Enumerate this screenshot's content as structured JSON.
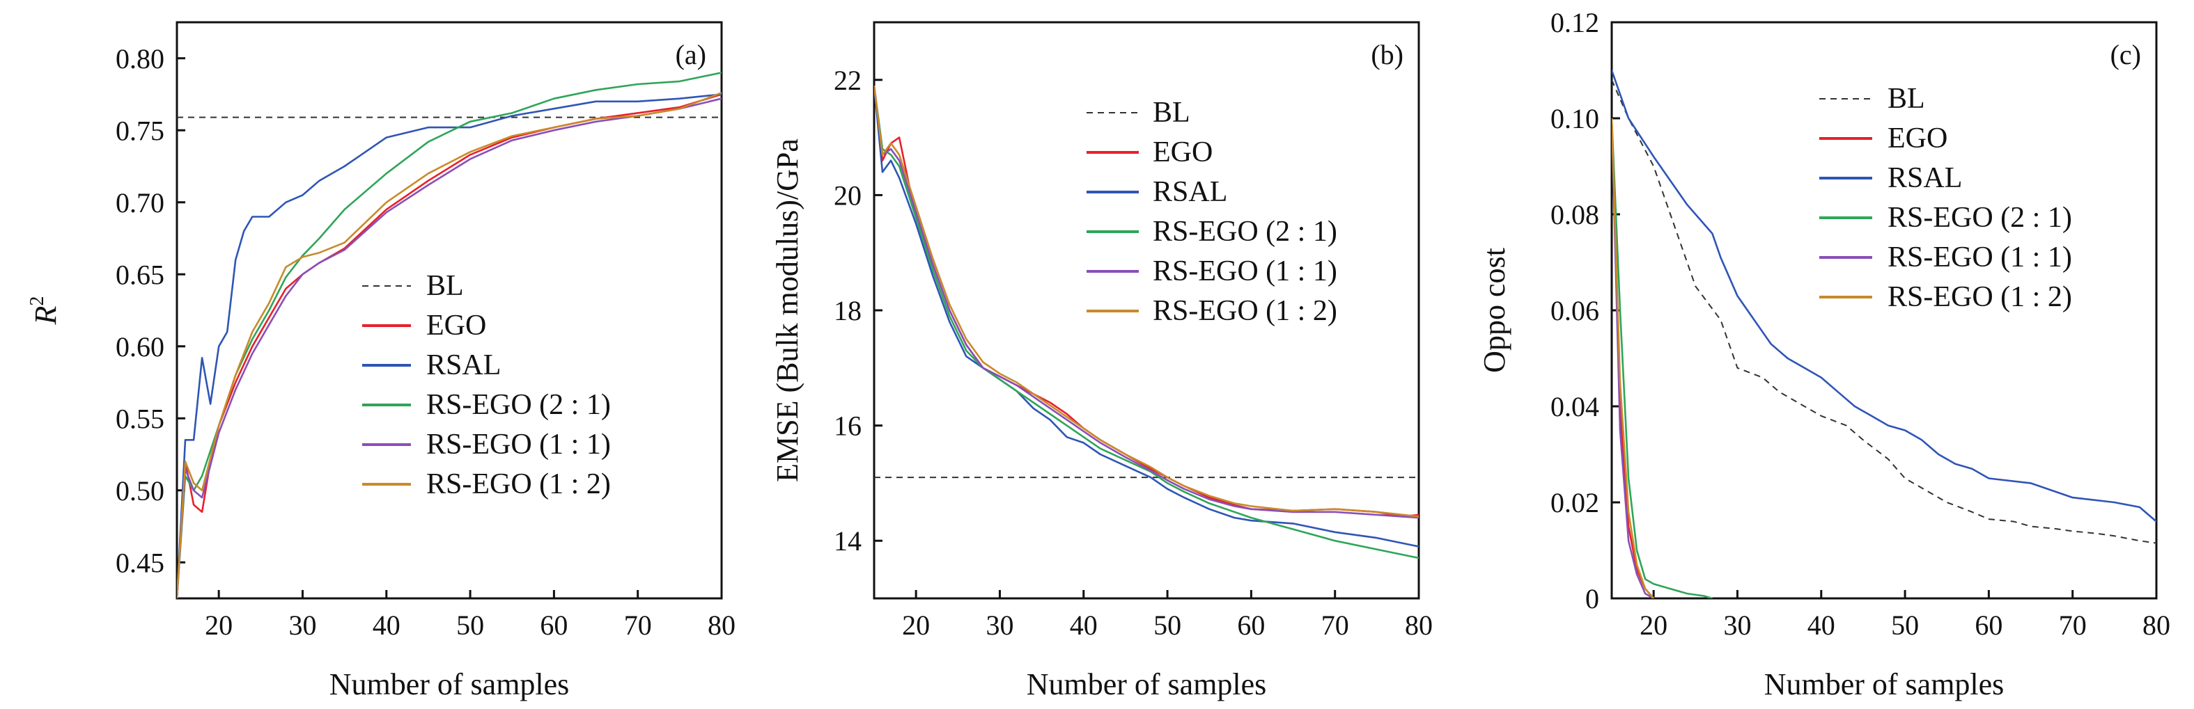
{
  "chart_data": [
    {
      "type": "line",
      "panel_label": "(a)",
      "xlabel": "Number of samples",
      "ylabel": "R",
      "ylabel_sup": "2",
      "xlim": [
        15,
        80
      ],
      "ylim": [
        0.425,
        0.825
      ],
      "xticks": [
        20,
        30,
        40,
        50,
        60,
        70,
        80
      ],
      "xtick_labels": [
        "20",
        "30",
        "40",
        "50",
        "60",
        "70",
        "80"
      ],
      "yticks": [
        0.45,
        0.5,
        0.55,
        0.6,
        0.65,
        0.7,
        0.75,
        0.8
      ],
      "ytick_labels": [
        "0.45",
        "0.50",
        "0.55",
        "0.60",
        "0.65",
        "0.70",
        "0.75",
        "0.80"
      ],
      "legend": {
        "position": "center-right"
      },
      "series": [
        {
          "name": "BL",
          "color": "#333333",
          "dashed": true,
          "x": [
            15,
            80
          ],
          "y": [
            0.759,
            0.759
          ]
        },
        {
          "name": "EGO",
          "color": "#e8202a",
          "dashed": false,
          "x": [
            15,
            16,
            17,
            18,
            19,
            20,
            22,
            24,
            26,
            28,
            30,
            32,
            35,
            40,
            45,
            50,
            55,
            60,
            65,
            70,
            75,
            80
          ],
          "y": [
            0.425,
            0.52,
            0.49,
            0.485,
            0.52,
            0.545,
            0.575,
            0.6,
            0.62,
            0.64,
            0.65,
            0.658,
            0.668,
            0.695,
            0.715,
            0.733,
            0.745,
            0.752,
            0.758,
            0.762,
            0.766,
            0.775
          ]
        },
        {
          "name": "RSAL",
          "color": "#2f55b5",
          "dashed": false,
          "x": [
            15,
            16,
            17,
            18,
            19,
            20,
            21,
            22,
            23,
            24,
            26,
            28,
            30,
            32,
            35,
            40,
            45,
            50,
            55,
            60,
            65,
            70,
            75,
            80
          ],
          "y": [
            0.425,
            0.535,
            0.535,
            0.592,
            0.56,
            0.6,
            0.61,
            0.66,
            0.68,
            0.69,
            0.69,
            0.7,
            0.705,
            0.715,
            0.725,
            0.745,
            0.752,
            0.752,
            0.76,
            0.765,
            0.77,
            0.77,
            0.772,
            0.775
          ]
        },
        {
          "name": "RS-EGO (2 : 1)",
          "color": "#2fa558",
          "dashed": false,
          "x": [
            15,
            16,
            17,
            18,
            20,
            22,
            24,
            26,
            28,
            30,
            32,
            35,
            40,
            45,
            50,
            55,
            60,
            65,
            70,
            75,
            80
          ],
          "y": [
            0.425,
            0.51,
            0.5,
            0.51,
            0.545,
            0.58,
            0.605,
            0.625,
            0.648,
            0.663,
            0.675,
            0.695,
            0.72,
            0.742,
            0.756,
            0.762,
            0.772,
            0.778,
            0.782,
            0.784,
            0.79
          ]
        },
        {
          "name": "RS-EGO (1 : 1)",
          "color": "#8a4fb8",
          "dashed": false,
          "x": [
            15,
            16,
            17,
            18,
            20,
            22,
            24,
            26,
            28,
            30,
            32,
            35,
            40,
            45,
            50,
            55,
            60,
            65,
            70,
            75,
            80
          ],
          "y": [
            0.425,
            0.515,
            0.5,
            0.495,
            0.54,
            0.57,
            0.595,
            0.615,
            0.635,
            0.65,
            0.658,
            0.667,
            0.693,
            0.712,
            0.73,
            0.743,
            0.75,
            0.756,
            0.76,
            0.765,
            0.772
          ]
        },
        {
          "name": "RS-EGO (1 : 2)",
          "color": "#c98a2a",
          "dashed": false,
          "x": [
            15,
            16,
            17,
            18,
            20,
            22,
            24,
            26,
            28,
            30,
            32,
            35,
            40,
            45,
            50,
            55,
            60,
            65,
            70,
            75,
            80
          ],
          "y": [
            0.425,
            0.52,
            0.505,
            0.5,
            0.545,
            0.58,
            0.61,
            0.63,
            0.655,
            0.662,
            0.665,
            0.672,
            0.7,
            0.72,
            0.735,
            0.746,
            0.752,
            0.758,
            0.76,
            0.765,
            0.776
          ]
        }
      ]
    },
    {
      "type": "line",
      "panel_label": "(b)",
      "xlabel": "Number of samples",
      "ylabel": "EMSE (Bulk modulus)/GPa",
      "xlim": [
        15,
        80
      ],
      "ylim": [
        13,
        23
      ],
      "xticks": [
        20,
        30,
        40,
        50,
        60,
        70,
        80
      ],
      "xtick_labels": [
        "20",
        "30",
        "40",
        "50",
        "60",
        "70",
        "80"
      ],
      "yticks": [
        14,
        16,
        18,
        20,
        22
      ],
      "ytick_labels": [
        "14",
        "16",
        "18",
        "20",
        "22"
      ],
      "legend": {
        "position": "top-right"
      },
      "series": [
        {
          "name": "BL",
          "color": "#333333",
          "dashed": true,
          "x": [
            15,
            80
          ],
          "y": [
            15.1,
            15.1
          ]
        },
        {
          "name": "EGO",
          "color": "#e8202a",
          "dashed": false,
          "x": [
            15,
            16,
            17,
            18,
            19,
            20,
            22,
            24,
            26,
            28,
            30,
            32,
            34,
            36,
            38,
            40,
            42,
            45,
            48,
            50,
            52,
            55,
            58,
            60,
            65,
            70,
            75,
            78,
            80
          ],
          "y": [
            21.9,
            20.6,
            20.9,
            21.0,
            20.3,
            19.6,
            18.8,
            18.0,
            17.4,
            17.0,
            16.85,
            16.7,
            16.55,
            16.4,
            16.2,
            15.95,
            15.75,
            15.5,
            15.25,
            15.1,
            14.95,
            14.75,
            14.62,
            14.55,
            14.52,
            14.55,
            14.5,
            14.42,
            14.45
          ]
        },
        {
          "name": "RSAL",
          "color": "#2f55b5",
          "dashed": false,
          "x": [
            15,
            16,
            17,
            18,
            20,
            22,
            24,
            26,
            28,
            30,
            32,
            34,
            36,
            38,
            40,
            42,
            45,
            48,
            50,
            52,
            55,
            58,
            60,
            65,
            70,
            75,
            80
          ],
          "y": [
            21.9,
            20.4,
            20.6,
            20.3,
            19.5,
            18.6,
            17.8,
            17.2,
            17.0,
            16.8,
            16.6,
            16.3,
            16.1,
            15.8,
            15.7,
            15.5,
            15.3,
            15.1,
            14.9,
            14.75,
            14.55,
            14.4,
            14.35,
            14.3,
            14.15,
            14.05,
            13.9
          ]
        },
        {
          "name": "RS-EGO (2 : 1)",
          "color": "#2fa558",
          "dashed": false,
          "x": [
            15,
            16,
            17,
            18,
            20,
            22,
            24,
            26,
            28,
            30,
            32,
            34,
            36,
            38,
            40,
            42,
            45,
            48,
            50,
            52,
            55,
            58,
            60,
            65,
            70,
            75,
            80
          ],
          "y": [
            21.9,
            20.8,
            20.7,
            20.5,
            19.6,
            18.7,
            17.9,
            17.3,
            17.0,
            16.8,
            16.6,
            16.4,
            16.2,
            16.0,
            15.8,
            15.6,
            15.4,
            15.2,
            15.0,
            14.85,
            14.65,
            14.5,
            14.4,
            14.2,
            14.0,
            13.85,
            13.7
          ]
        },
        {
          "name": "RS-EGO (1 : 1)",
          "color": "#8a4fb8",
          "dashed": false,
          "x": [
            15,
            16,
            17,
            18,
            20,
            22,
            24,
            26,
            28,
            30,
            32,
            34,
            36,
            38,
            40,
            42,
            45,
            48,
            50,
            52,
            55,
            58,
            60,
            65,
            70,
            75,
            80
          ],
          "y": [
            21.9,
            20.7,
            20.8,
            20.6,
            19.7,
            18.8,
            18.0,
            17.4,
            17.0,
            16.85,
            16.7,
            16.5,
            16.3,
            16.1,
            15.9,
            15.7,
            15.45,
            15.22,
            15.05,
            14.9,
            14.72,
            14.6,
            14.55,
            14.5,
            14.5,
            14.45,
            14.4
          ]
        },
        {
          "name": "RS-EGO (1 : 2)",
          "color": "#c98a2a",
          "dashed": false,
          "x": [
            15,
            16,
            17,
            18,
            20,
            22,
            24,
            26,
            28,
            30,
            32,
            34,
            36,
            38,
            40,
            42,
            45,
            48,
            50,
            52,
            55,
            58,
            60,
            65,
            70,
            75,
            80
          ],
          "y": [
            21.9,
            20.7,
            20.9,
            20.7,
            19.8,
            18.9,
            18.1,
            17.5,
            17.1,
            16.9,
            16.75,
            16.55,
            16.35,
            16.15,
            15.95,
            15.75,
            15.5,
            15.28,
            15.1,
            14.95,
            14.78,
            14.65,
            14.6,
            14.52,
            14.55,
            14.5,
            14.42
          ]
        }
      ]
    },
    {
      "type": "line",
      "panel_label": "(c)",
      "xlabel": "Number of samples",
      "ylabel": "Oppo cost",
      "xlim": [
        15,
        80
      ],
      "ylim": [
        0,
        0.12
      ],
      "xticks": [
        20,
        30,
        40,
        50,
        60,
        70,
        80
      ],
      "xtick_labels": [
        "20",
        "30",
        "40",
        "50",
        "60",
        "70",
        "80"
      ],
      "yticks": [
        0,
        0.02,
        0.04,
        0.06,
        0.08,
        0.1,
        0.12
      ],
      "ytick_labels": [
        "0",
        "0.02",
        "0.04",
        "0.06",
        "0.08",
        "0.10",
        "0.12"
      ],
      "legend": {
        "position": "top-right"
      },
      "series": [
        {
          "name": "BL",
          "color": "#333333",
          "dashed": true,
          "x": [
            15,
            17,
            20,
            22,
            25,
            28,
            30,
            33,
            35,
            38,
            40,
            43,
            45,
            48,
            50,
            53,
            55,
            58,
            60,
            63,
            65,
            68,
            70,
            73,
            75,
            78,
            80
          ],
          "y": [
            0.108,
            0.1,
            0.09,
            0.08,
            0.065,
            0.058,
            0.048,
            0.046,
            0.043,
            0.04,
            0.038,
            0.036,
            0.033,
            0.029,
            0.025,
            0.022,
            0.02,
            0.018,
            0.0165,
            0.016,
            0.015,
            0.0145,
            0.014,
            0.0135,
            0.013,
            0.012,
            0.0115
          ]
        },
        {
          "name": "EGO",
          "color": "#e8202a",
          "dashed": false,
          "x": [
            15,
            16,
            17,
            18,
            19,
            20
          ],
          "y": [
            0.1,
            0.04,
            0.015,
            0.006,
            0.002,
            0
          ]
        },
        {
          "name": "RSAL",
          "color": "#2f55b5",
          "dashed": false,
          "x": [
            15,
            17,
            20,
            22,
            24,
            25,
            27,
            28,
            30,
            32,
            34,
            36,
            38,
            40,
            42,
            44,
            46,
            48,
            50,
            52,
            54,
            56,
            58,
            60,
            65,
            70,
            75,
            78,
            80
          ],
          "y": [
            0.11,
            0.1,
            0.092,
            0.087,
            0.082,
            0.08,
            0.076,
            0.071,
            0.063,
            0.058,
            0.053,
            0.05,
            0.048,
            0.046,
            0.043,
            0.04,
            0.038,
            0.036,
            0.035,
            0.033,
            0.03,
            0.028,
            0.027,
            0.025,
            0.024,
            0.021,
            0.02,
            0.019,
            0.016
          ]
        },
        {
          "name": "RS-EGO (2 : 1)",
          "color": "#2fa558",
          "dashed": false,
          "x": [
            15,
            16,
            17,
            18,
            19,
            20,
            22,
            24,
            26,
            27
          ],
          "y": [
            0.1,
            0.06,
            0.025,
            0.01,
            0.004,
            0.003,
            0.002,
            0.001,
            0.0005,
            0
          ]
        },
        {
          "name": "RS-EGO (1 : 1)",
          "color": "#8a4fb8",
          "dashed": false,
          "x": [
            15,
            16,
            17,
            18,
            19,
            20
          ],
          "y": [
            0.1,
            0.035,
            0.012,
            0.005,
            0.001,
            0
          ]
        },
        {
          "name": "RS-EGO (1 : 2)",
          "color": "#c98a2a",
          "dashed": false,
          "x": [
            15,
            16,
            17,
            18,
            19,
            20
          ],
          "y": [
            0.1,
            0.045,
            0.018,
            0.007,
            0.002,
            0
          ]
        }
      ]
    }
  ]
}
